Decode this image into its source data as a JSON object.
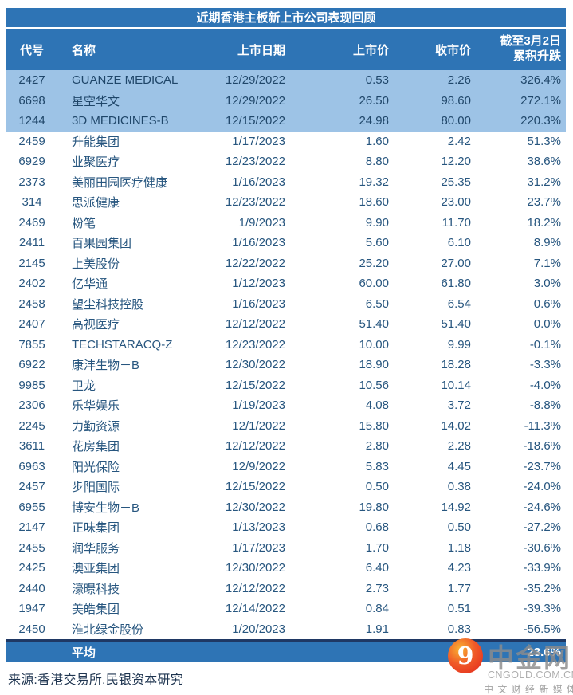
{
  "chart_data": {
    "type": "table",
    "title": "近期香港主板新上市公司表现回顾",
    "columns": [
      {
        "key": "code",
        "label": "代号"
      },
      {
        "key": "name",
        "label": "名称"
      },
      {
        "key": "date",
        "label": "上市日期"
      },
      {
        "key": "ipo",
        "label": "上市价"
      },
      {
        "key": "close",
        "label": "收市价"
      },
      {
        "key": "change",
        "label": "截至3月2日累积升跌",
        "label_line1": "截至3月2日",
        "label_line2": "累积升跌"
      }
    ],
    "highlighted_row_count": 3,
    "rows": [
      {
        "code": "2427",
        "name": "GUANZE MEDICAL",
        "date": "12/29/2022",
        "ipo": "0.53",
        "close": "2.26",
        "change": "326.4%"
      },
      {
        "code": "6698",
        "name": "星空华文",
        "date": "12/29/2022",
        "ipo": "26.50",
        "close": "98.60",
        "change": "272.1%"
      },
      {
        "code": "1244",
        "name": "3D MEDICINES-B",
        "date": "12/15/2022",
        "ipo": "24.98",
        "close": "80.00",
        "change": "220.3%"
      },
      {
        "code": "2459",
        "name": "升能集团",
        "date": "1/17/2023",
        "ipo": "1.60",
        "close": "2.42",
        "change": "51.3%"
      },
      {
        "code": "6929",
        "name": "业聚医疗",
        "date": "12/23/2022",
        "ipo": "8.80",
        "close": "12.20",
        "change": "38.6%"
      },
      {
        "code": "2373",
        "name": "美丽田园医疗健康",
        "date": "1/16/2023",
        "ipo": "19.32",
        "close": "25.35",
        "change": "31.2%"
      },
      {
        "code": "314",
        "name": "思派健康",
        "date": "12/23/2022",
        "ipo": "18.60",
        "close": "23.00",
        "change": "23.7%"
      },
      {
        "code": "2469",
        "name": "粉笔",
        "date": "1/9/2023",
        "ipo": "9.90",
        "close": "11.70",
        "change": "18.2%"
      },
      {
        "code": "2411",
        "name": "百果园集团",
        "date": "1/16/2023",
        "ipo": "5.60",
        "close": "6.10",
        "change": "8.9%"
      },
      {
        "code": "2145",
        "name": "上美股份",
        "date": "12/22/2022",
        "ipo": "25.20",
        "close": "27.00",
        "change": "7.1%"
      },
      {
        "code": "2402",
        "name": "亿华通",
        "date": "1/12/2023",
        "ipo": "60.00",
        "close": "61.80",
        "change": "3.0%"
      },
      {
        "code": "2458",
        "name": "望尘科技控股",
        "date": "1/16/2023",
        "ipo": "6.50",
        "close": "6.54",
        "change": "0.6%"
      },
      {
        "code": "2407",
        "name": "高视医疗",
        "date": "12/12/2022",
        "ipo": "51.40",
        "close": "51.40",
        "change": "0.0%"
      },
      {
        "code": "7855",
        "name": "TECHSTARACQ-Z",
        "date": "12/23/2022",
        "ipo": "10.00",
        "close": "9.99",
        "change": "-0.1%"
      },
      {
        "code": "6922",
        "name": "康沣生物－B",
        "date": "12/30/2022",
        "ipo": "18.90",
        "close": "18.28",
        "change": "-3.3%"
      },
      {
        "code": "9985",
        "name": "卫龙",
        "date": "12/15/2022",
        "ipo": "10.56",
        "close": "10.14",
        "change": "-4.0%"
      },
      {
        "code": "2306",
        "name": "乐华娱乐",
        "date": "1/19/2023",
        "ipo": "4.08",
        "close": "3.72",
        "change": "-8.8%"
      },
      {
        "code": "2245",
        "name": "力勤资源",
        "date": "12/1/2022",
        "ipo": "15.80",
        "close": "14.02",
        "change": "-11.3%"
      },
      {
        "code": "3611",
        "name": "花房集团",
        "date": "12/12/2022",
        "ipo": "2.80",
        "close": "2.28",
        "change": "-18.6%"
      },
      {
        "code": "6963",
        "name": "阳光保险",
        "date": "12/9/2022",
        "ipo": "5.83",
        "close": "4.45",
        "change": "-23.7%"
      },
      {
        "code": "2457",
        "name": "步阳国际",
        "date": "12/15/2022",
        "ipo": "0.50",
        "close": "0.38",
        "change": "-24.0%"
      },
      {
        "code": "6955",
        "name": "博安生物－B",
        "date": "12/30/2022",
        "ipo": "19.80",
        "close": "14.92",
        "change": "-24.6%"
      },
      {
        "code": "2147",
        "name": "正味集团",
        "date": "1/13/2023",
        "ipo": "0.68",
        "close": "0.50",
        "change": "-27.2%"
      },
      {
        "code": "2455",
        "name": "润华服务",
        "date": "1/17/2023",
        "ipo": "1.70",
        "close": "1.18",
        "change": "-30.6%"
      },
      {
        "code": "2425",
        "name": "澳亚集团",
        "date": "12/30/2022",
        "ipo": "6.40",
        "close": "4.23",
        "change": "-33.9%"
      },
      {
        "code": "2440",
        "name": "濠暻科技",
        "date": "12/12/2022",
        "ipo": "2.73",
        "close": "1.77",
        "change": "-35.2%"
      },
      {
        "code": "1947",
        "name": "美皓集团",
        "date": "12/14/2022",
        "ipo": "0.84",
        "close": "0.51",
        "change": "-39.3%"
      },
      {
        "code": "2450",
        "name": "淮北绿金股份",
        "date": "1/20/2023",
        "ipo": "1.91",
        "close": "0.83",
        "change": "-56.5%"
      }
    ],
    "average_row": {
      "label": "平均",
      "change": "23.6%"
    },
    "source_note": "来源:香港交易所,民银资本研究"
  },
  "watermark": {
    "logo_glyph": "9",
    "brand": "中金网",
    "domain": "CNGOLD.COM.CN",
    "tagline": "中 文 财 经 新 媒 体"
  },
  "colors": {
    "header_blue": "#2E74B5",
    "highlight_blue": "#9DC3E6",
    "body_text_blue": "#27567F",
    "divider_navy": "#1F3864",
    "watermark_red": "#E2261C"
  }
}
